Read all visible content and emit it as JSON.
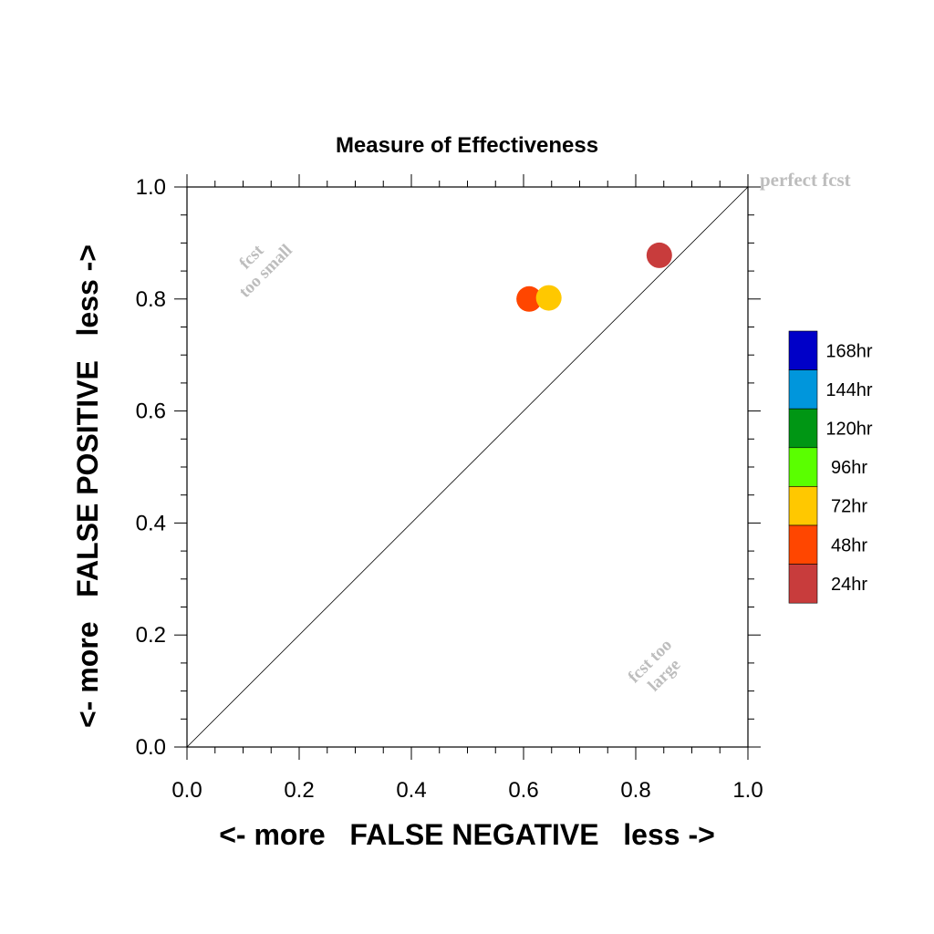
{
  "chart_data": {
    "type": "scatter",
    "title": "Measure of Effectiveness",
    "xlabel": "<- more   FALSE NEGATIVE   less ->",
    "ylabel": "<- more   FALSE POSITIVE   less ->",
    "xlim": [
      0.0,
      1.0
    ],
    "ylim": [
      0.0,
      1.0
    ],
    "x_ticks": [
      "0.0",
      "0.2",
      "0.4",
      "0.6",
      "0.8",
      "1.0"
    ],
    "y_ticks": [
      "0.0",
      "0.2",
      "0.4",
      "0.6",
      "0.8",
      "1.0"
    ],
    "grid": false,
    "reference_line": "diagonal",
    "annotations": {
      "perfect": "perfect fcst",
      "too_small_1": "fcst",
      "too_small_2": "too small",
      "too_large_1": "fcst too",
      "too_large_2": "large"
    },
    "legend": {
      "placement": "right",
      "entries": [
        {
          "label": "168hr",
          "color": "#0000c8"
        },
        {
          "label": "144hr",
          "color": "#0096dc"
        },
        {
          "label": "120hr",
          "color": "#009614"
        },
        {
          "label": "96hr",
          "color": "#5aff00"
        },
        {
          "label": "72hr",
          "color": "#ffc800"
        },
        {
          "label": "48hr",
          "color": "#ff4600"
        },
        {
          "label": "24hr",
          "color": "#c83c3c"
        }
      ]
    },
    "points": [
      {
        "series": "48hr",
        "x": 0.61,
        "y": 0.8,
        "color": "#ff4600"
      },
      {
        "series": "72hr",
        "x": 0.645,
        "y": 0.802,
        "color": "#ffc800"
      },
      {
        "series": "24hr",
        "x": 0.842,
        "y": 0.878,
        "color": "#c83c3c"
      }
    ]
  }
}
